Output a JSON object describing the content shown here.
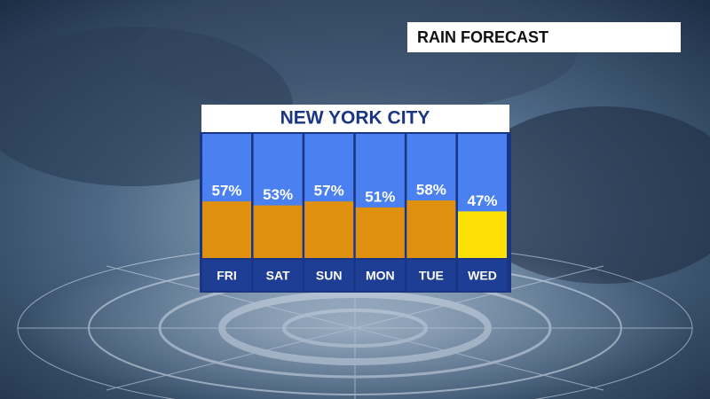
{
  "chart_data": {
    "type": "bar",
    "label": "RAIN FORECAST",
    "title": "NEW YORK CITY",
    "categories": [
      "FRI",
      "SAT",
      "SUN",
      "MON",
      "TUE",
      "WED"
    ],
    "values": [
      57,
      53,
      57,
      51,
      58,
      47
    ],
    "value_labels": [
      "57%",
      "53%",
      "57%",
      "51%",
      "58%",
      "47%"
    ],
    "colors": [
      "#df900f",
      "#df900f",
      "#df900f",
      "#df900f",
      "#df900f",
      "#fde005"
    ],
    "ylim": [
      0,
      125
    ]
  }
}
